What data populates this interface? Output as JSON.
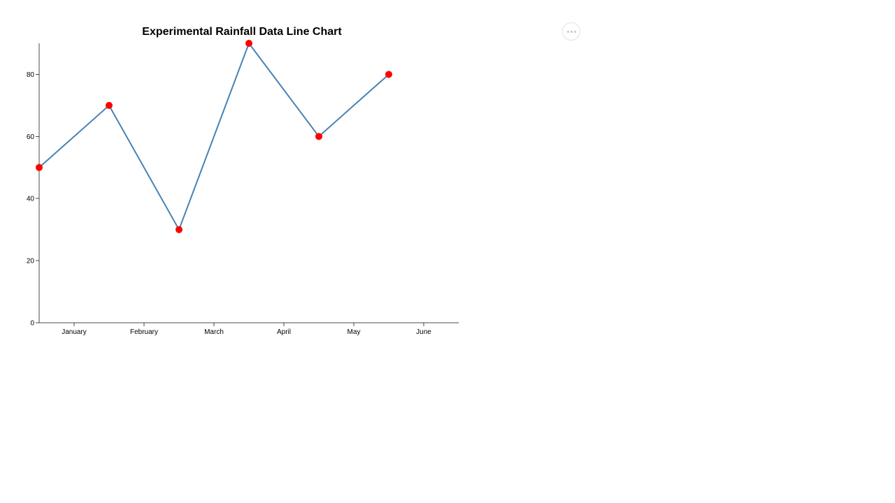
{
  "menu_button": {
    "icon": "more-horizontal-icon"
  },
  "chart_data": {
    "type": "line",
    "title": "Experimental Rainfall Data Line Chart",
    "xlabel": "",
    "ylabel": "",
    "categories": [
      "January",
      "February",
      "March",
      "April",
      "May",
      "June"
    ],
    "values": [
      50,
      70,
      30,
      90,
      60,
      80
    ],
    "ylim": [
      0,
      90
    ],
    "y_ticks": [
      0,
      20,
      40,
      60,
      80
    ],
    "x_ticks": [
      "January",
      "February",
      "March",
      "April",
      "May",
      "June"
    ],
    "line_color": "#4682b4",
    "point_color": "#ff0000",
    "grid": false,
    "legend": "none"
  }
}
